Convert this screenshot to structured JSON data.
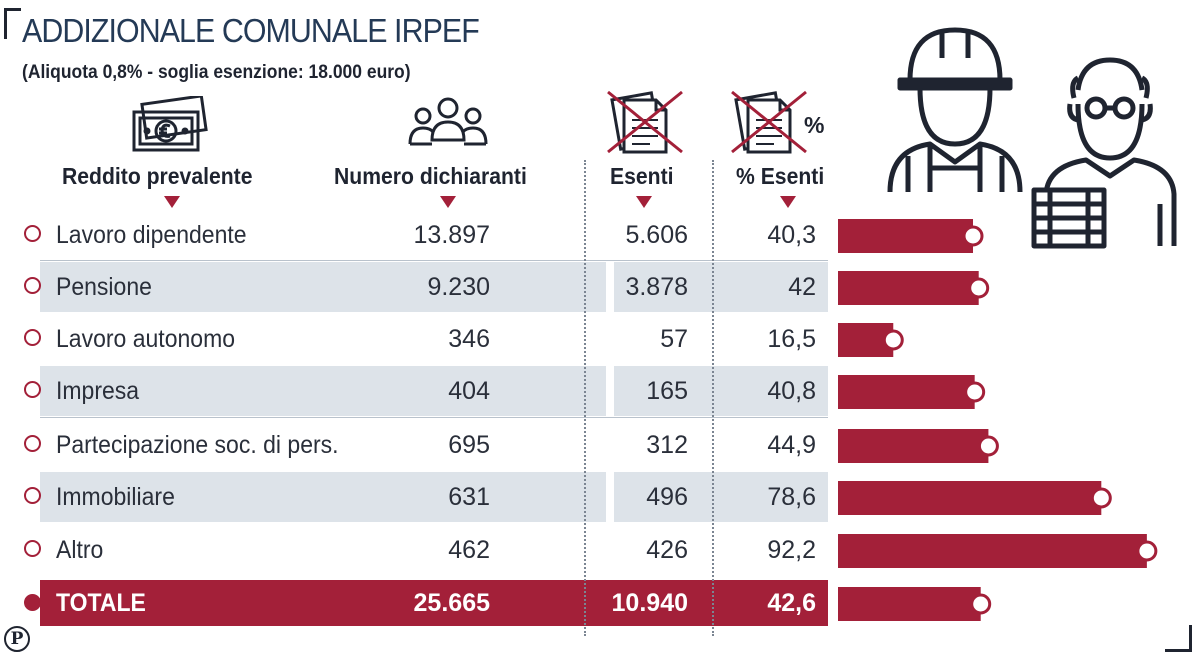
{
  "title": "ADDIZIONALE COMUNALE IRPEF",
  "subtitle": "(Aliquota 0,8% - soglia esenzione: 18.000 euro)",
  "headers": {
    "reddito": "Reddito prevalente",
    "numero": "Numero dichiaranti",
    "esenti": "Esenti",
    "pct": "% Esenti",
    "pct_symbol": "%"
  },
  "icons": [
    "banknote-icon",
    "people-group-icon",
    "crossed-document-icon",
    "crossed-document-percent-icon",
    "worker-icon",
    "pensioner-icon"
  ],
  "colors": {
    "accent": "#a32039",
    "shade": "#dde3e9",
    "title": "#243a56"
  },
  "chart_data": {
    "type": "table",
    "title": "ADDIZIONALE COMUNALE IRPEF",
    "subtitle": "(Aliquota 0,8% - soglia esenzione: 18.000 euro)",
    "columns": [
      "Reddito prevalente",
      "Numero dichiaranti",
      "Esenti",
      "% Esenti"
    ],
    "rows": [
      {
        "label": "Lavoro dipendente",
        "numero": "13.897",
        "esenti": "5.606",
        "pct": "40,3",
        "pct_value": 40.3
      },
      {
        "label": "Pensione",
        "numero": "9.230",
        "esenti": "3.878",
        "pct": "42",
        "pct_value": 42
      },
      {
        "label": "Lavoro autonomo",
        "numero": "346",
        "esenti": "57",
        "pct": "16,5",
        "pct_value": 16.5
      },
      {
        "label": "Impresa",
        "numero": "404",
        "esenti": "165",
        "pct": "40,8",
        "pct_value": 40.8
      },
      {
        "label": "Partecipazione soc. di pers.",
        "numero": "695",
        "esenti": "312",
        "pct": "44,9",
        "pct_value": 44.9
      },
      {
        "label": "Immobiliare",
        "numero": "631",
        "esenti": "496",
        "pct": "78,6",
        "pct_value": 78.6
      },
      {
        "label": "Altro",
        "numero": "462",
        "esenti": "426",
        "pct": "92,2",
        "pct_value": 92.2
      }
    ],
    "total": {
      "label": "TOTALE",
      "numero": "25.665",
      "esenti": "10.940",
      "pct": "42,6",
      "pct_value": 42.6
    },
    "bar_max": 100
  }
}
